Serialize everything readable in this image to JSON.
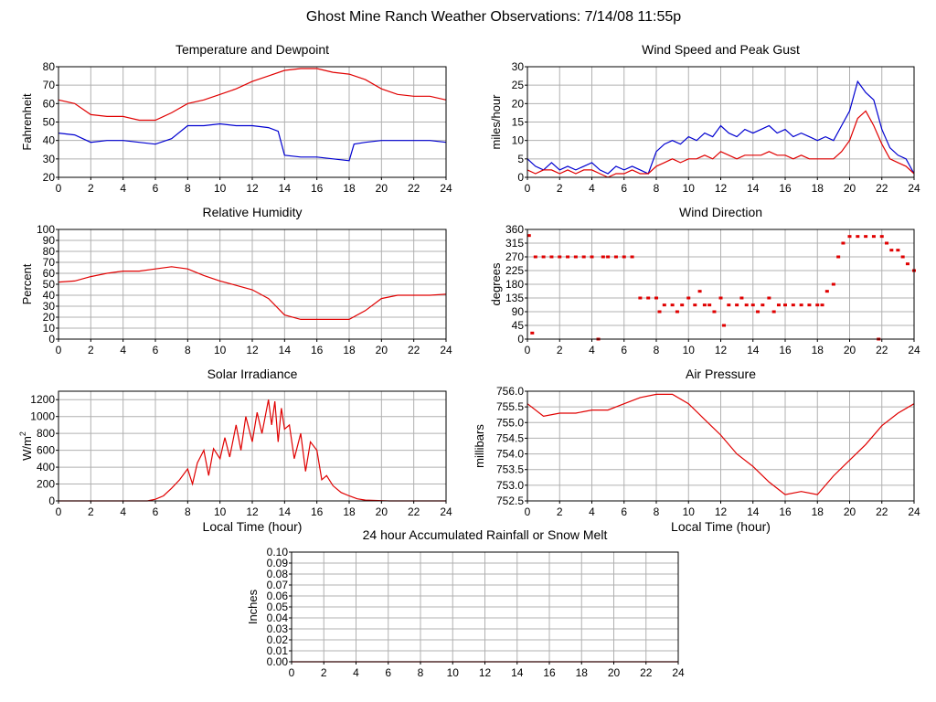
{
  "page": {
    "title": "Ghost Mine Ranch Weather Observations: 7/14/08 11:55p"
  },
  "colors": {
    "red": "#e00000",
    "blue": "#0000d0",
    "grid": "#b0b0b0"
  },
  "chart_data": [
    {
      "id": "temperature",
      "type": "line",
      "title": "Temperature and Dewpoint",
      "xlabel": "",
      "ylabel": "Fahrenheit",
      "xlim": [
        0,
        24
      ],
      "ylim": [
        20,
        80
      ],
      "xticks": [
        0,
        2,
        4,
        6,
        8,
        10,
        12,
        14,
        16,
        18,
        20,
        22,
        24
      ],
      "yticks": [
        20,
        30,
        40,
        50,
        60,
        70,
        80
      ],
      "series": [
        {
          "name": "Temperature",
          "color": "#e00000",
          "x": [
            0,
            1,
            2,
            3,
            4,
            5,
            6,
            7,
            8,
            9,
            10,
            11,
            12,
            13,
            14,
            15,
            16,
            17,
            18,
            19,
            20,
            21,
            22,
            23,
            24
          ],
          "y": [
            62,
            60,
            54,
            53,
            53,
            51,
            51,
            55,
            60,
            62,
            65,
            68,
            72,
            75,
            78,
            79,
            79,
            77,
            76,
            73,
            68,
            65,
            64,
            64,
            62
          ]
        },
        {
          "name": "Dewpoint",
          "color": "#0000d0",
          "x": [
            0,
            1,
            2,
            3,
            4,
            5,
            6,
            7,
            8,
            9,
            10,
            11,
            12,
            13,
            13.6,
            14,
            15,
            16,
            17,
            18,
            18.3,
            19,
            20,
            21,
            22,
            23,
            24
          ],
          "y": [
            44,
            43,
            39,
            40,
            40,
            39,
            38,
            41,
            48,
            48,
            49,
            48,
            48,
            47,
            45,
            32,
            31,
            31,
            30,
            29,
            38,
            39,
            40,
            40,
            40,
            40,
            39
          ]
        }
      ]
    },
    {
      "id": "wind-speed",
      "type": "line",
      "title": "Wind Speed and Peak Gust",
      "xlabel": "",
      "ylabel": "miles/hour",
      "xlim": [
        0,
        24
      ],
      "ylim": [
        0,
        30
      ],
      "xticks": [
        0,
        2,
        4,
        6,
        8,
        10,
        12,
        14,
        16,
        18,
        20,
        22,
        24
      ],
      "yticks": [
        0,
        5,
        10,
        15,
        20,
        25,
        30
      ],
      "series": [
        {
          "name": "Peak Gust",
          "color": "#0000d0",
          "x": [
            0,
            0.5,
            1,
            1.5,
            2,
            2.5,
            3,
            3.5,
            4,
            4.5,
            5,
            5.5,
            6,
            6.5,
            7,
            7.5,
            8,
            8.5,
            9,
            9.5,
            10,
            10.5,
            11,
            11.5,
            12,
            12.5,
            13,
            13.5,
            14,
            14.5,
            15,
            15.5,
            16,
            16.5,
            17,
            17.5,
            18,
            18.5,
            19,
            19.5,
            20,
            20.5,
            21,
            21.5,
            22,
            22.5,
            23,
            23.5,
            24
          ],
          "y": [
            5,
            3,
            2,
            4,
            2,
            3,
            2,
            3,
            4,
            2,
            1,
            3,
            2,
            3,
            2,
            1,
            7,
            9,
            10,
            9,
            11,
            10,
            12,
            11,
            14,
            12,
            11,
            13,
            12,
            13,
            14,
            12,
            13,
            11,
            12,
            11,
            10,
            11,
            10,
            14,
            18,
            26,
            23,
            21,
            13,
            8,
            6,
            5,
            1
          ]
        },
        {
          "name": "Wind Speed",
          "color": "#e00000",
          "x": [
            0,
            0.5,
            1,
            1.5,
            2,
            2.5,
            3,
            3.5,
            4,
            4.5,
            5,
            5.5,
            6,
            6.5,
            7,
            7.5,
            8,
            8.5,
            9,
            9.5,
            10,
            10.5,
            11,
            11.5,
            12,
            12.5,
            13,
            13.5,
            14,
            14.5,
            15,
            15.5,
            16,
            16.5,
            17,
            17.5,
            18,
            18.5,
            19,
            19.5,
            20,
            20.5,
            21,
            21.5,
            22,
            22.5,
            23,
            23.5,
            24
          ],
          "y": [
            2,
            1,
            2,
            2,
            1,
            2,
            1,
            2,
            2,
            1,
            0,
            1,
            1,
            2,
            1,
            1,
            3,
            4,
            5,
            4,
            5,
            5,
            6,
            5,
            7,
            6,
            5,
            6,
            6,
            6,
            7,
            6,
            6,
            5,
            6,
            5,
            5,
            5,
            5,
            7,
            10,
            16,
            18,
            14,
            9,
            5,
            4,
            3,
            1
          ]
        }
      ]
    },
    {
      "id": "humidity",
      "type": "line",
      "title": "Relative Humidity",
      "xlabel": "",
      "ylabel": "Percent",
      "xlim": [
        0,
        24
      ],
      "ylim": [
        0,
        100
      ],
      "xticks": [
        0,
        2,
        4,
        6,
        8,
        10,
        12,
        14,
        16,
        18,
        20,
        22,
        24
      ],
      "yticks": [
        0,
        10,
        20,
        30,
        40,
        50,
        60,
        70,
        80,
        90,
        100
      ],
      "series": [
        {
          "name": "Relative Humidity",
          "color": "#e00000",
          "x": [
            0,
            1,
            2,
            3,
            4,
            5,
            6,
            7,
            8,
            9,
            10,
            11,
            12,
            13,
            14,
            15,
            16,
            17,
            18,
            19,
            20,
            21,
            22,
            23,
            24
          ],
          "y": [
            52,
            53,
            57,
            60,
            62,
            62,
            64,
            66,
            64,
            58,
            53,
            49,
            45,
            37,
            22,
            18,
            18,
            18,
            18,
            26,
            37,
            40,
            40,
            40,
            41
          ]
        }
      ]
    },
    {
      "id": "wind-direction",
      "type": "scatter",
      "title": "Wind Direction",
      "xlabel": "",
      "ylabel": "degrees",
      "xlim": [
        0,
        24
      ],
      "ylim": [
        0,
        360
      ],
      "xticks": [
        0,
        2,
        4,
        6,
        8,
        10,
        12,
        14,
        16,
        18,
        20,
        22,
        24
      ],
      "yticks": [
        0,
        45,
        90,
        135,
        180,
        225,
        270,
        315,
        360
      ],
      "series": [
        {
          "name": "Wind Direction",
          "color": "#e00000",
          "x": [
            0.1,
            0.3,
            0.5,
            1,
            1.5,
            2,
            2.5,
            3,
            3.5,
            4,
            4.4,
            4.7,
            5,
            5.5,
            6,
            6.5,
            7,
            7.5,
            8,
            8.2,
            8.5,
            9,
            9.3,
            9.6,
            10,
            10.4,
            10.7,
            11,
            11.3,
            11.6,
            12,
            12.2,
            12.5,
            13,
            13.3,
            13.6,
            14,
            14.3,
            14.6,
            15,
            15.3,
            15.6,
            16,
            16.5,
            17,
            17.5,
            18,
            18.3,
            18.6,
            19,
            19.3,
            19.6,
            20,
            20.5,
            21,
            21.5,
            21.8,
            22,
            22.3,
            22.6,
            23,
            23.3,
            23.6,
            24
          ],
          "y": [
            340,
            20,
            270,
            270,
            270,
            270,
            270,
            270,
            270,
            270,
            0,
            270,
            270,
            270,
            270,
            270,
            135,
            135,
            135,
            90,
            112,
            112,
            90,
            112,
            135,
            112,
            157,
            112,
            112,
            90,
            135,
            45,
            112,
            112,
            135,
            112,
            112,
            90,
            112,
            135,
            90,
            112,
            112,
            112,
            112,
            112,
            112,
            112,
            157,
            180,
            270,
            315,
            337,
            337,
            337,
            337,
            0,
            337,
            315,
            292,
            292,
            270,
            247,
            225
          ]
        }
      ]
    },
    {
      "id": "solar",
      "type": "line",
      "title": "Solar Irradiance",
      "xlabel": "Local Time (hour)",
      "ylabel": "W/m",
      "ylabel_sup": "2",
      "xlim": [
        0,
        24
      ],
      "ylim": [
        0,
        1300
      ],
      "xticks": [
        0,
        2,
        4,
        6,
        8,
        10,
        12,
        14,
        16,
        18,
        20,
        22,
        24
      ],
      "yticks": [
        0,
        200,
        400,
        600,
        800,
        1000,
        1200
      ],
      "series": [
        {
          "name": "Solar Irradiance",
          "color": "#e00000",
          "x": [
            0,
            5.5,
            6,
            6.5,
            7,
            7.5,
            8,
            8.3,
            8.6,
            9,
            9.3,
            9.6,
            10,
            10.3,
            10.6,
            11,
            11.3,
            11.6,
            12,
            12.3,
            12.6,
            13,
            13.2,
            13.4,
            13.6,
            13.8,
            14,
            14.3,
            14.6,
            15,
            15.3,
            15.6,
            16,
            16.3,
            16.6,
            17,
            17.5,
            18,
            18.5,
            19,
            20,
            20.5,
            24
          ],
          "y": [
            0,
            0,
            20,
            60,
            150,
            250,
            380,
            200,
            450,
            600,
            300,
            620,
            500,
            750,
            520,
            900,
            600,
            1000,
            700,
            1050,
            800,
            1200,
            900,
            1180,
            700,
            1100,
            850,
            900,
            500,
            800,
            350,
            700,
            600,
            250,
            300,
            180,
            100,
            60,
            25,
            10,
            3,
            0,
            0
          ]
        }
      ]
    },
    {
      "id": "pressure",
      "type": "line",
      "title": "Air Pressure",
      "xlabel": "Local Time (hour)",
      "ylabel": "millibars",
      "xlim": [
        0,
        24
      ],
      "ylim": [
        752.5,
        756.0
      ],
      "xticks": [
        0,
        2,
        4,
        6,
        8,
        10,
        12,
        14,
        16,
        18,
        20,
        22,
        24
      ],
      "yticks": [
        "752.5",
        "753.0",
        "753.5",
        "754.0",
        "754.5",
        "755.0",
        "755.5",
        "756.0"
      ],
      "series": [
        {
          "name": "Air Pressure",
          "color": "#e00000",
          "x": [
            0,
            1,
            2,
            3,
            4,
            5,
            6,
            7,
            8,
            9,
            10,
            11,
            12,
            13,
            14,
            15,
            16,
            17,
            18,
            19,
            20,
            21,
            22,
            23,
            24
          ],
          "y": [
            755.6,
            755.2,
            755.3,
            755.3,
            755.4,
            755.4,
            755.6,
            755.8,
            755.9,
            755.9,
            755.6,
            755.1,
            754.6,
            754.0,
            753.6,
            753.1,
            752.7,
            752.8,
            752.7,
            753.3,
            753.8,
            754.3,
            754.9,
            755.3,
            755.6
          ]
        }
      ]
    },
    {
      "id": "rainfall",
      "type": "line",
      "title": "24 hour Accumulated Rainfall or Snow Melt",
      "xlabel": "",
      "ylabel": "Inches",
      "xlim": [
        0,
        24
      ],
      "ylim": [
        0,
        0.1
      ],
      "xticks": [
        0,
        2,
        4,
        6,
        8,
        10,
        12,
        14,
        16,
        18,
        20,
        22,
        24
      ],
      "yticks": [
        "0.00",
        "0.01",
        "0.02",
        "0.03",
        "0.04",
        "0.05",
        "0.06",
        "0.07",
        "0.08",
        "0.09",
        "0.10"
      ],
      "series": [
        {
          "name": "Rainfall",
          "color": "#e00000",
          "x": [
            0,
            24
          ],
          "y": [
            0,
            0
          ]
        }
      ]
    }
  ]
}
